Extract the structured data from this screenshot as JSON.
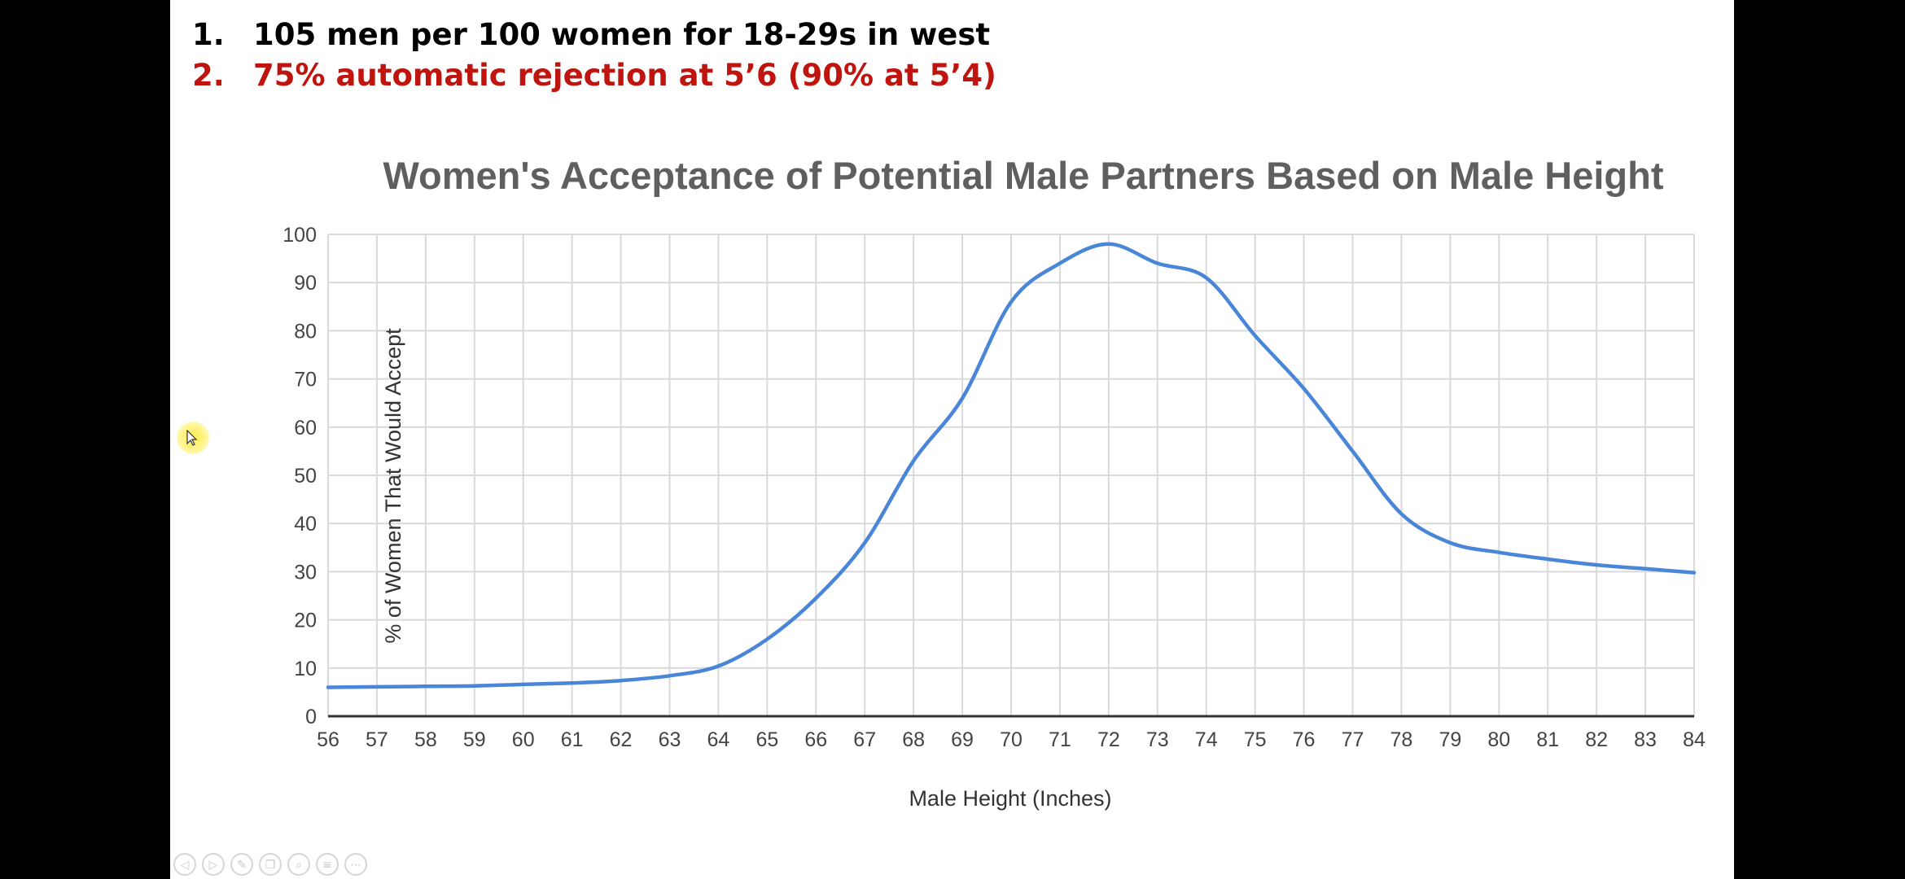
{
  "points": [
    {
      "number": "1.",
      "text": "105 men per 100 women for 18-29s in west",
      "color": "#000000"
    },
    {
      "number": "2.",
      "text": "75% automatic rejection at 5’6 (90% at 5’4)",
      "color": "#c0140f"
    }
  ],
  "controls": [
    {
      "icon": "previous-icon",
      "glyph": "◁"
    },
    {
      "icon": "next-icon",
      "glyph": "▷"
    },
    {
      "icon": "pen-icon",
      "glyph": "✎"
    },
    {
      "icon": "copy-icon",
      "glyph": "❐"
    },
    {
      "icon": "zoom-icon",
      "glyph": "⌕"
    },
    {
      "icon": "menu-icon",
      "glyph": "≡"
    },
    {
      "icon": "more-icon",
      "glyph": "⋯"
    }
  ],
  "chart_data": {
    "type": "line",
    "title": "Women's Acceptance of Potential Male Partners Based on Male Height",
    "xlabel": "Male Height (Inches)",
    "ylabel": "% of Women That Would Accept",
    "xlim": [
      56,
      84
    ],
    "ylim": [
      0,
      100
    ],
    "x_ticks": [
      56,
      57,
      58,
      59,
      60,
      61,
      62,
      63,
      64,
      65,
      66,
      67,
      68,
      69,
      70,
      71,
      72,
      73,
      74,
      75,
      76,
      77,
      78,
      79,
      80,
      81,
      82,
      83,
      84
    ],
    "y_ticks": [
      0,
      10,
      20,
      30,
      40,
      50,
      60,
      70,
      80,
      90,
      100
    ],
    "grid": true,
    "line_color": "#4a86d8",
    "series": [
      {
        "x": [
          56,
          57,
          58,
          59,
          60,
          61,
          62,
          63,
          64,
          65,
          66,
          67,
          68,
          69,
          70,
          71,
          72,
          73,
          74,
          75,
          76,
          77,
          78,
          79,
          80,
          81,
          82,
          83,
          84
        ],
        "values": [
          6,
          6.1,
          6.2,
          6.3,
          6.6,
          6.9,
          7.4,
          8.4,
          10.4,
          16,
          24.5,
          36,
          53,
          66,
          86,
          94,
          98,
          94,
          91,
          79,
          68,
          55,
          42,
          36,
          34,
          32.6,
          31.4,
          30.6,
          29.8
        ]
      }
    ]
  }
}
